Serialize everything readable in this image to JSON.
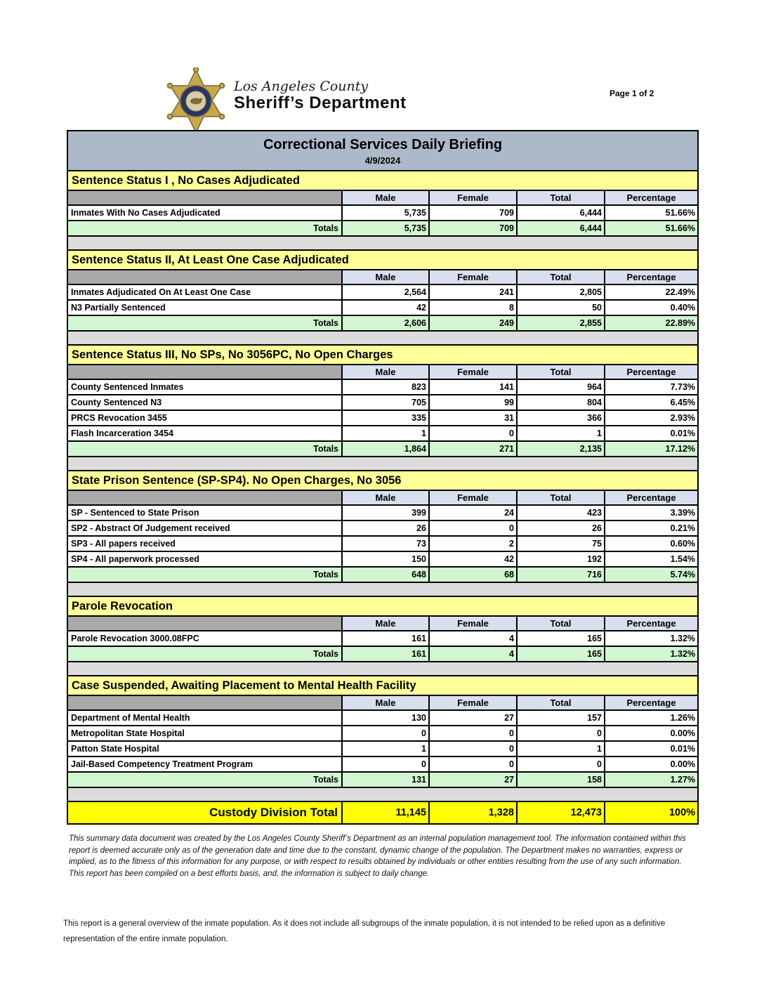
{
  "letterhead": {
    "county_line": "Los Angeles County",
    "department_line": "Sheriff’s Department",
    "registered_mark": "®",
    "page_label": "Page 1 of 2",
    "badge_icon": "sheriff-six-point-star-badge"
  },
  "report": {
    "title": "Correctional Services Daily Briefing",
    "date": "4/9/2024",
    "columns": [
      "Male",
      "Female",
      "Total",
      "Percentage"
    ],
    "totals_label": "Totals",
    "sections": [
      {
        "title": "Sentence Status I , No Cases Adjudicated",
        "rows": [
          {
            "label": "Inmates With No Cases Adjudicated",
            "values": [
              "5,735",
              "709",
              "6,444",
              "51.66%"
            ]
          }
        ],
        "totals": [
          "5,735",
          "709",
          "6,444",
          "51.66%"
        ]
      },
      {
        "title": "Sentence Status II, At Least One Case Adjudicated",
        "rows": [
          {
            "label": "Inmates Adjudicated On At Least One Case",
            "values": [
              "2,564",
              "241",
              "2,805",
              "22.49%"
            ]
          },
          {
            "label": "N3 Partially Sentenced",
            "values": [
              "42",
              "8",
              "50",
              "0.40%"
            ]
          }
        ],
        "totals": [
          "2,606",
          "249",
          "2,855",
          "22.89%"
        ]
      },
      {
        "title": "Sentence Status III, No SPs, No 3056PC, No Open Charges",
        "rows": [
          {
            "label": "County Sentenced Inmates",
            "values": [
              "823",
              "141",
              "964",
              "7.73%"
            ]
          },
          {
            "label": "County Sentenced N3",
            "values": [
              "705",
              "99",
              "804",
              "6.45%"
            ]
          },
          {
            "label": "PRCS Revocation 3455",
            "values": [
              "335",
              "31",
              "366",
              "2.93%"
            ]
          },
          {
            "label": "Flash Incarceration 3454",
            "values": [
              "1",
              "0",
              "1",
              "0.01%"
            ]
          }
        ],
        "totals": [
          "1,864",
          "271",
          "2,135",
          "17.12%"
        ]
      },
      {
        "title": "State Prison Sentence (SP-SP4). No Open Charges, No 3056",
        "rows": [
          {
            "label": "SP - Sentenced to State Prison",
            "values": [
              "399",
              "24",
              "423",
              "3.39%"
            ]
          },
          {
            "label": "SP2 - Abstract Of Judgement received",
            "values": [
              "26",
              "0",
              "26",
              "0.21%"
            ]
          },
          {
            "label": "SP3 - All papers received",
            "values": [
              "73",
              "2",
              "75",
              "0.60%"
            ]
          },
          {
            "label": "SP4 - All paperwork processed",
            "values": [
              "150",
              "42",
              "192",
              "1.54%"
            ]
          }
        ],
        "totals": [
          "648",
          "68",
          "716",
          "5.74%"
        ]
      },
      {
        "title": "Parole Revocation",
        "rows": [
          {
            "label": "Parole Revocation 3000.08FPC",
            "values": [
              "161",
              "4",
              "165",
              "1.32%"
            ]
          }
        ],
        "totals": [
          "161",
          "4",
          "165",
          "1.32%"
        ]
      },
      {
        "title": "Case Suspended, Awaiting Placement to Mental Health Facility",
        "rows": [
          {
            "label": "Department of Mental Health",
            "values": [
              "130",
              "27",
              "157",
              "1.26%"
            ]
          },
          {
            "label": "Metropolitan State Hospital",
            "values": [
              "0",
              "0",
              "0",
              "0.00%"
            ]
          },
          {
            "label": "Patton State Hospital",
            "values": [
              "1",
              "0",
              "1",
              "0.01%"
            ]
          },
          {
            "label": "Jail-Based Competency Treatment Program",
            "values": [
              "0",
              "0",
              "0",
              "0.00%"
            ]
          }
        ],
        "totals": [
          "131",
          "27",
          "158",
          "1.27%"
        ]
      }
    ],
    "grand_total": {
      "label": "Custody Division Total",
      "values": [
        "11,145",
        "1,328",
        "12,473",
        "100%"
      ]
    }
  },
  "disclaimer": "This summary data document was created by the Los Angeles County Sheriff’s Department as an internal population management tool.  The information contained within this report is deemed accurate only as of the generation date and time due to the constant, dynamic change of the population.  The Department makes no warranties, express or implied, as to the fitness of this information for any purpose, or with respect to results obtained by individuals or other entities resulting from the use of any such information.  This report has been compiled on a best efforts basis, and, the information is subject to daily change.",
  "foot_note": "This report is a general overview of the inmate population.  As it does not include all subgroups of the inmate population, it is not intended to be relied upon as a definitive representation of the entire inmate population.",
  "colors": {
    "title_bar": "#acb9c9",
    "section_header": "#ffff99",
    "column_header": "#d9dfef",
    "corner_gray": "#a9a9a9",
    "totals_green": "#d2f5d2",
    "spacer_gray": "#dcdcdc",
    "grand_total_yellow": "#ffff00",
    "badge_gold": "#c7a84b",
    "badge_ring_blue": "#27356b"
  }
}
